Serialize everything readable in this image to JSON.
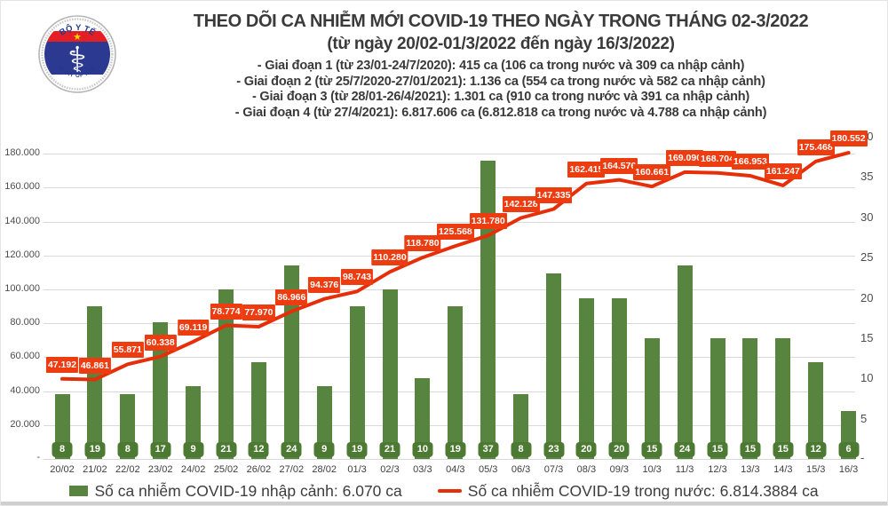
{
  "header": {
    "logo": {
      "top_text": "BỘ Y TẾ",
      "bottom_text": "MINISTRY OF HEALTH",
      "star": "★",
      "staff": "⚕"
    },
    "title": "THEO DÕI CA NHIỄM MỚI COVID-19 THEO NGÀY TRONG THÁNG 02-3/2022",
    "subtitle": "(từ ngày 20/02-01/3/2022 đến ngày 16/3/2022)",
    "phase_lines": [
      "- Giai đoạn 1 (từ 23/01-24/7/2020): 415 ca (106 ca trong nước và 309 ca nhập cảnh)",
      "- Giai đoạn 2 (từ 25/7/2020-27/01/2021): 1.136 ca (554 ca trong nước và 582 ca nhập cảnh)",
      "- Giai đoạn 3 (từ 28/01-26/4/2021): 1.301 ca (910 ca trong nước và 391 ca nhập cảnh)",
      "- Giai đoạn 4 (từ 27/4/2021): 6.817.606 ca (6.812.818 ca trong nước và 4.788 ca nhập cảnh)"
    ]
  },
  "chart_data": {
    "type": "bar",
    "title": "THEO DÕI CA NHIỄM MỚI COVID-19 THEO NGÀY TRONG THÁNG 02-3/2022",
    "categories": [
      "20/02",
      "21/02",
      "22/02",
      "23/02",
      "24/02",
      "25/02",
      "26/02",
      "27/02",
      "28/02",
      "01/3",
      "02/3",
      "03/3",
      "04/3",
      "05/3",
      "06/3",
      "07/3",
      "08/3",
      "09/3",
      "10/3",
      "11/3",
      "12/3",
      "13/3",
      "14/3",
      "15/3",
      "16/3"
    ],
    "series": [
      {
        "name": "Số ca nhiễm COVID-19 nhập cảnh",
        "type": "bar",
        "axis": "right",
        "color": "#578540",
        "values": [
          8,
          19,
          8,
          17,
          9,
          21,
          12,
          24,
          9,
          19,
          21,
          10,
          19,
          37,
          8,
          23,
          20,
          20,
          15,
          24,
          15,
          15,
          15,
          12,
          6
        ]
      },
      {
        "name": "Số ca nhiễm COVID-19 trong nước",
        "type": "line",
        "axis": "left",
        "color": "#e62e09",
        "label_bg": "#ee3c11",
        "values": [
          47192,
          46861,
          55871,
          60338,
          69119,
          78774,
          77970,
          86966,
          94376,
          98743,
          110280,
          118780,
          125568,
          131780,
          142128,
          147335,
          162415,
          164576,
          160661,
          169090,
          168704,
          166953,
          161247,
          175468,
          180552
        ],
        "labels": [
          "47.192",
          "46.861",
          "55.871",
          "60.338",
          "69.119",
          "78.774",
          "77.970",
          "86.966",
          "94.376",
          "98.743",
          "110.280",
          "118.780",
          "125.568",
          "131.780",
          "142.128",
          "147.335",
          "162.415",
          "164.576",
          "160.661",
          "169.090",
          "168.704",
          "166.953",
          "161.247",
          "175.468",
          "180.552"
        ]
      }
    ],
    "axes": {
      "left": {
        "max": 190000,
        "tick_values": [
          180000,
          160000,
          140000,
          120000,
          100000,
          80000,
          60000,
          40000,
          20000
        ],
        "tick_labels": [
          "180.000",
          "160.000",
          "140.000",
          "120.000",
          "100.000",
          "80.000",
          "60.000",
          "40.000",
          "20.000"
        ],
        "zero_label": "-"
      },
      "right": {
        "max": 40,
        "tick_values": [
          40,
          35,
          30,
          25,
          20,
          15,
          10,
          5
        ],
        "tick_labels": [
          "40",
          "35",
          "30",
          "25",
          "20",
          "15",
          "10",
          "5"
        ],
        "zero_label": "-"
      }
    },
    "grid": true,
    "legend_position": "bottom"
  },
  "legend": {
    "items": [
      {
        "swatch": "bar",
        "color": "#578540",
        "label": "Số ca nhiễm COVID-19 nhập cảnh: 6.070 ca"
      },
      {
        "swatch": "line",
        "color": "#e62e09",
        "label": "Số ca nhiễm COVID-19 trong nước: 6.814.3884 ca"
      }
    ]
  }
}
